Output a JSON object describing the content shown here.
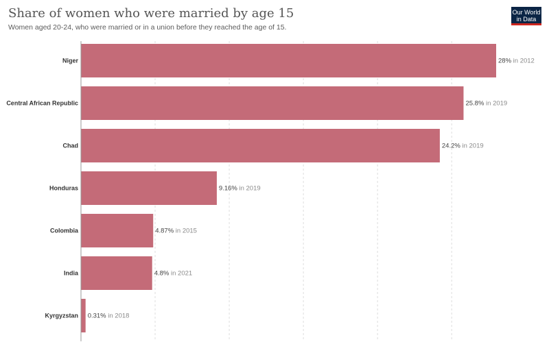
{
  "header": {
    "title": "Share of women who were married by age 15",
    "subtitle": "Women aged 20-24, who were married or in a union before they reached the age of 15.",
    "logo_line1": "Our World",
    "logo_line2": "in Data"
  },
  "colors": {
    "bar": "#c46b78",
    "grid": "#dddddd",
    "axis": "#999999",
    "logo_bg": "#0b2545",
    "logo_accent": "#ce261e"
  },
  "chart_data": {
    "type": "bar",
    "orientation": "horizontal",
    "categories": [
      "Niger",
      "Central African Republic",
      "Chad",
      "Honduras",
      "Colombia",
      "India",
      "Kyrgyzstan"
    ],
    "values": [
      28,
      25.8,
      24.2,
      9.16,
      4.87,
      4.8,
      0.31
    ],
    "value_labels": [
      "28%",
      "25.8%",
      "24.2%",
      "9.16%",
      "4.87%",
      "4.8%",
      "0.31%"
    ],
    "year_labels": [
      "in 2012",
      "in 2019",
      "in 2019",
      "in 2019",
      "in 2015",
      "in 2021",
      "in 2018"
    ],
    "xlim": [
      0,
      28
    ],
    "grid": true
  }
}
